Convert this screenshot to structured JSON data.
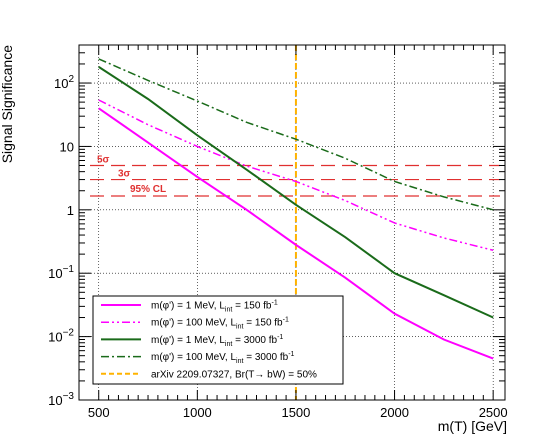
{
  "chart_data": {
    "type": "line",
    "xlabel": "m(T) [GeV]",
    "ylabel": "Signal Significance",
    "xlim": [
      400,
      2560
    ],
    "ylim_log10": [
      -3,
      2.6
    ],
    "y_scale": "log",
    "grid": true,
    "legend_position": "bottom-left",
    "x_ticks": [
      {
        "v": 500,
        "label": "500"
      },
      {
        "v": 1000,
        "label": "1000"
      },
      {
        "v": 1500,
        "label": "1500"
      },
      {
        "v": 2000,
        "label": "2000"
      },
      {
        "v": 2500,
        "label": "2500"
      }
    ],
    "y_ticks": [
      {
        "v": 0.001,
        "base": "10",
        "exp": "−3"
      },
      {
        "v": 0.01,
        "base": "10",
        "exp": "−2"
      },
      {
        "v": 0.1,
        "base": "10",
        "exp": "−1"
      },
      {
        "v": 1,
        "base": "1",
        "exp": ""
      },
      {
        "v": 10,
        "base": "10",
        "exp": ""
      },
      {
        "v": 100,
        "base": "10",
        "exp": "2"
      }
    ],
    "x": [
      500,
      750,
      1000,
      1250,
      1500,
      1750,
      2000,
      2250,
      2500
    ],
    "series": [
      {
        "name": "m(φ') = 1 MeV, L_int = 150 fb^-1",
        "color": "#ff00ff",
        "dash": "",
        "width": 2,
        "values": [
          40,
          11.5,
          3.3,
          1.0,
          0.28,
          0.085,
          0.023,
          0.009,
          0.0045
        ]
      },
      {
        "name": "m(φ') = 100 MeV, L_int = 150 fb^-1",
        "color": "#ff00ff",
        "dash": "8,3,2,3,2,3",
        "width": 1.5,
        "values": [
          54,
          22,
          10,
          4.9,
          2.8,
          1.4,
          0.62,
          0.36,
          0.23
        ]
      },
      {
        "name": "m(φ') = 1 MeV, L_int = 3000 fb^-1",
        "color": "#1a6b1a",
        "dash": "",
        "width": 2,
        "values": [
          180,
          56,
          15,
          4.3,
          1.2,
          0.37,
          0.1,
          0.045,
          0.02
        ]
      },
      {
        "name": "m(φ') = 100 MeV, L_int = 3000 fb^-1",
        "color": "#1a6b1a",
        "dash": "8,3,2,3",
        "width": 1.5,
        "values": [
          240,
          110,
          52,
          24,
          13,
          6.5,
          2.8,
          1.6,
          1.0
        ]
      }
    ],
    "reference_lines": [
      {
        "label": "5σ",
        "y": 5
      },
      {
        "label": "3σ",
        "y": 3
      },
      {
        "label": "95% CL",
        "y": 1.65
      }
    ],
    "vertical_line": {
      "x": 1500,
      "label": "arXiv 2209.07327, Br(T→ bW) = 50%",
      "color": "#ffb300"
    }
  },
  "legend": [
    {
      "pre": "m(φ') = 1 MeV, L",
      "sub": "int",
      "mid": " = 150 fb",
      "sup": "-1"
    },
    {
      "pre": "m(φ') = 100 MeV, L",
      "sub": "int",
      "mid": " = 150 fb",
      "sup": "-1"
    },
    {
      "pre": "m(φ') = 1 MeV, L",
      "sub": "int",
      "mid": " = 3000 fb",
      "sup": "-1"
    },
    {
      "pre": "m(φ') = 100 MeV, L",
      "sub": "int",
      "mid": " = 3000 fb",
      "sup": "-1"
    },
    {
      "pre": "arXiv 2209.07327, Br(T→ bW) = 50%",
      "sub": "",
      "mid": "",
      "sup": ""
    }
  ]
}
